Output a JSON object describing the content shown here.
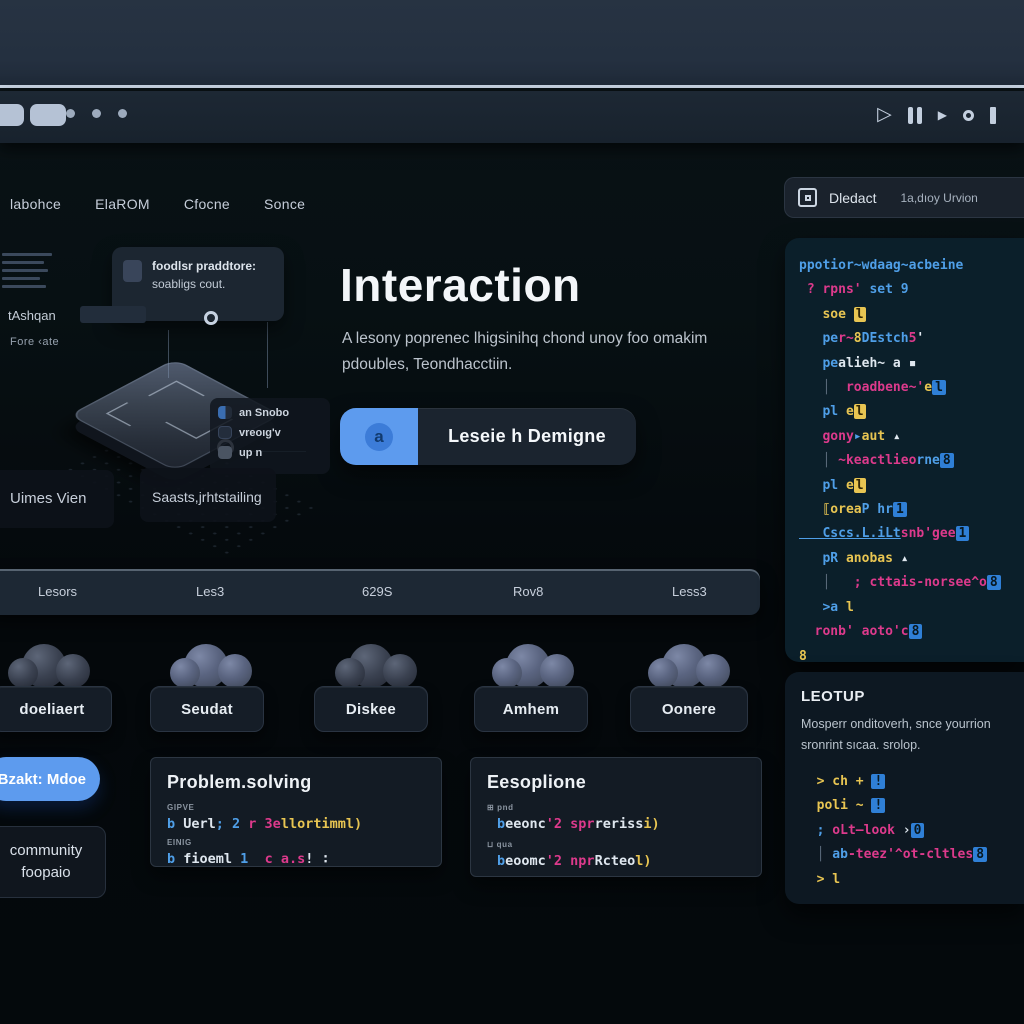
{
  "window": {
    "media_icons": [
      "play-icon",
      "pause-icon",
      "play-small-icon",
      "record-icon",
      "stop-icon"
    ]
  },
  "nav": {
    "items": [
      "labohce",
      "ElaROM",
      "Cfocne",
      "Sonce"
    ]
  },
  "badgebar": {
    "label": "Dledact",
    "sublabel": "1a,dıoy Urvion"
  },
  "hero": {
    "title": "Interaction",
    "subtitle_line1": "A lesony poprenec lhigsinihq  chond unoy foo omakim",
    "subtitle_line2": "pdoubles, Teondhacctiin.",
    "cta_icon": "a",
    "cta_label": "Leseie h Demigne"
  },
  "illustration": {
    "tooltip_line1": "foodlsr praddtore:",
    "tooltip_line2": "soabligs cout.",
    "label_left": "tAshqan",
    "label_small": "Fore ‹ate",
    "legend": [
      {
        "label": "an Snobo"
      },
      {
        "label": "vreoıg'v"
      },
      {
        "label": "up n"
      }
    ],
    "caption_left": "Uimes Vien",
    "caption_right": "Saasts,jrhtstailing"
  },
  "statbar": {
    "items": [
      "Lesors",
      "Les3",
      "629S",
      "Rov8",
      "Less3"
    ]
  },
  "cloud_cards": [
    "doeliaert",
    "Seudat",
    "Diskee",
    "Amhem",
    "Oonere"
  ],
  "side": {
    "mode_button": "Bzakt: Mdoe",
    "community_line1": "community",
    "community_line2": "foopaio"
  },
  "panels": {
    "problem": {
      "title": "Problem.solving",
      "tag1": "GIPVE",
      "code1": [
        [
          "b",
          "b "
        ],
        [
          "w",
          "Uerl"
        ],
        [
          "b",
          "; 2 "
        ],
        [
          "p",
          "r 3e"
        ],
        [
          "y",
          "llortimml)"
        ]
      ],
      "tag2": "EINIG",
      "code2": [
        [
          "b",
          "b "
        ],
        [
          "w",
          "fioeml "
        ],
        [
          "b",
          "1"
        ],
        [
          "w",
          "  "
        ],
        [
          "p",
          "c a.s"
        ],
        [
          "w",
          "! ∶"
        ]
      ]
    },
    "examples": {
      "title": "Eesoplione",
      "tag1": "⊞ pnd",
      "code1": [
        [
          "b",
          "b"
        ],
        [
          "w",
          "eeonc"
        ],
        [
          "p",
          "'2 "
        ],
        [
          "p",
          "spr"
        ],
        [
          "w",
          "reriss"
        ],
        [
          "y",
          "i)"
        ]
      ],
      "tag2": "⊔ qua",
      "code2": [
        [
          "b",
          "b"
        ],
        [
          "w",
          "eoomc"
        ],
        [
          "p",
          "'2 "
        ],
        [
          "p",
          "npr"
        ],
        [
          "w",
          "Rcteo"
        ],
        [
          "y",
          "l)"
        ]
      ]
    },
    "editor": {
      "lines": [
        [
          [
            "b",
            "ppotior~wdaag~acbeine"
          ]
        ],
        [
          [
            "p",
            " ? rpns'"
          ],
          [
            "b",
            " set 9"
          ]
        ],
        [
          [
            "y",
            "   soe "
          ],
          [
            "ybx",
            "l"
          ]
        ],
        [
          [
            "b",
            "   pe"
          ],
          [
            "p",
            "r~"
          ],
          [
            "y",
            "8"
          ],
          [
            "b",
            "DEstch"
          ],
          [
            "p",
            "5"
          ],
          [
            "w",
            "'"
          ]
        ],
        [
          [
            "b",
            "   pe"
          ],
          [
            "w",
            "alieh~ a ▪"
          ]
        ],
        [
          [
            "g",
            "   │"
          ],
          [
            "p",
            "  roadbene~'"
          ],
          [
            "y",
            "e"
          ],
          [
            "bx",
            "l"
          ]
        ],
        [
          [
            "b",
            "   pl"
          ],
          [
            "y",
            " e"
          ],
          [
            "ybx",
            "l"
          ]
        ],
        [
          [
            "p",
            "   gony"
          ],
          [
            "b",
            "▸"
          ],
          [
            "y",
            "aut"
          ],
          [
            "w",
            " ▴"
          ]
        ],
        [
          [
            "g",
            "   │"
          ],
          [
            "p",
            " ~keactlieo"
          ],
          [
            "b",
            "rne"
          ],
          [
            "bx",
            "8"
          ]
        ],
        [
          [
            "b",
            "   pl"
          ],
          [
            "y",
            " e"
          ],
          [
            "ybx",
            "l"
          ]
        ],
        [
          [
            "y",
            "   ⟦orea"
          ],
          [
            "b",
            "P hr"
          ],
          [
            "bx",
            "1"
          ]
        ],
        [
          [
            "bu",
            "   Cscs.L.iLt"
          ],
          [
            "p",
            "snb'gee"
          ],
          [
            "bx",
            "1"
          ]
        ],
        [
          [
            "b",
            "   pR"
          ],
          [
            "y",
            " anobas"
          ],
          [
            "w",
            " ▴"
          ]
        ],
        [
          [
            "g",
            "   │"
          ],
          [
            "p",
            "   ; cttais-norsee^o"
          ],
          [
            "bx",
            "8"
          ]
        ],
        [
          [
            "b",
            "   >a"
          ],
          [
            "y",
            " l"
          ]
        ],
        [
          [
            "p",
            "  ronb' aoto'c"
          ],
          [
            "bx",
            "8"
          ]
        ],
        [
          [
            "y",
            "8"
          ]
        ]
      ]
    },
    "leotup": {
      "title": "LEOTUP",
      "desc_line1": "Mosperr onditoverh,  snce yourrion",
      "desc_line2": "sronrint sıcaa. srolop.",
      "lines": [
        [
          [
            "y",
            "  > ch + "
          ],
          [
            "bx",
            "!"
          ]
        ],
        [
          [
            "y",
            "  poli ~ "
          ],
          [
            "bx",
            "!"
          ]
        ],
        [
          [
            "b",
            "  ;"
          ],
          [
            "p",
            " oLt—look"
          ],
          [
            "w",
            " ›"
          ],
          [
            "bx",
            "0"
          ]
        ],
        [
          [
            "g",
            "  │"
          ],
          [
            "b",
            " ab"
          ],
          [
            "p",
            "-teez'^ot-cltles"
          ],
          [
            "bx",
            "8"
          ]
        ],
        [
          [
            "y",
            "  > l"
          ]
        ]
      ]
    }
  },
  "colors": {
    "accent_blue": "#5d9bee",
    "code_blue": "#4f9fe8",
    "code_pink": "#dd3a8c",
    "code_yellow": "#e8c552",
    "panel_bg": "#131b24",
    "editor_bg": "#0b1f2a"
  }
}
